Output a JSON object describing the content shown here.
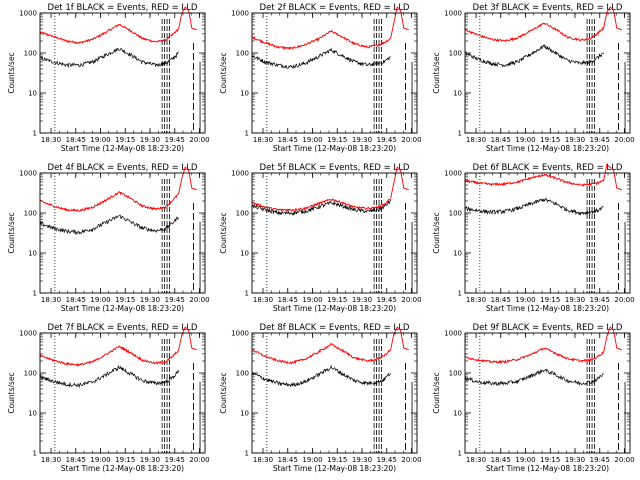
{
  "figure": {
    "panels": [
      {
        "title": "Det 1f BLACK = Events, RED = LLD"
      },
      {
        "title": "Det 2f BLACK = Events, RED = LLD"
      },
      {
        "title": "Det 3f BLACK = Events, RED = LLD"
      },
      {
        "title": "Det 4f BLACK = Events, RED = LLD"
      },
      {
        "title": "Det 5f BLACK = Events, RED = LLD"
      },
      {
        "title": "Det 6f BLACK = Events, RED = LLD"
      },
      {
        "title": "Det 7f BLACK = Events, RED = LLD"
      },
      {
        "title": "Det 8f BLACK = Events, RED = LLD"
      },
      {
        "title": "Det 9f BLACK = Events, RED = LLD"
      }
    ],
    "xlabel": "Start Time (12-May-08 18:23:20)",
    "ylabel": "Counts/sec",
    "xticks": [
      "18:30",
      "18:45",
      "19:00",
      "19:15",
      "19:30",
      "19:45",
      "20:00"
    ],
    "yticks": [
      "1",
      "10",
      "100",
      "1000"
    ],
    "colors": {
      "events": "#000000",
      "lld": "#ff0000",
      "axes": "#000000"
    }
  },
  "chart_data": {
    "type": "line",
    "layout": "3x3 grid",
    "x_units": "minutes after 18:23:20",
    "xlim": [
      0,
      100
    ],
    "yscale": "log",
    "ylim": [
      1,
      1000
    ],
    "series": [
      {
        "name": "Events",
        "color": "#000000"
      },
      {
        "name": "LLD",
        "color": "#ff0000"
      }
    ],
    "panels": [
      {
        "title": "Det 1f BLACK = Events, RED = LLD",
        "x": [
          0,
          8,
          16,
          24,
          32,
          40,
          48,
          55,
          62,
          70,
          76,
          80,
          84
        ],
        "events": [
          75,
          60,
          50,
          50,
          60,
          90,
          130,
          90,
          60,
          50,
          55,
          70,
          100
        ],
        "lld": [
          330,
          260,
          200,
          180,
          220,
          330,
          520,
          360,
          230,
          190,
          210,
          280,
          400
        ]
      },
      {
        "title": "Det 2f BLACK = Events, RED = LLD",
        "x": [
          0,
          8,
          16,
          24,
          32,
          40,
          48,
          55,
          62,
          70,
          76,
          80,
          84
        ],
        "events": [
          85,
          60,
          50,
          45,
          55,
          80,
          120,
          85,
          60,
          50,
          55,
          60,
          80
        ],
        "lld": [
          250,
          180,
          140,
          130,
          160,
          220,
          350,
          250,
          170,
          140,
          155,
          180,
          230
        ]
      },
      {
        "title": "Det 3f BLACK = Events, RED = LLD",
        "x": [
          0,
          8,
          16,
          24,
          32,
          40,
          48,
          55,
          62,
          70,
          76,
          80,
          84
        ],
        "events": [
          100,
          70,
          55,
          50,
          60,
          95,
          150,
          100,
          65,
          55,
          60,
          75,
          100
        ],
        "lld": [
          380,
          280,
          220,
          200,
          240,
          360,
          560,
          390,
          250,
          210,
          230,
          300,
          420
        ]
      },
      {
        "title": "Det 4f BLACK = Events, RED = LLD",
        "x": [
          0,
          8,
          16,
          24,
          32,
          40,
          48,
          55,
          62,
          70,
          76,
          80,
          84
        ],
        "events": [
          55,
          42,
          35,
          33,
          40,
          58,
          85,
          60,
          42,
          36,
          40,
          55,
          80
        ],
        "lld": [
          200,
          150,
          120,
          115,
          140,
          210,
          330,
          230,
          150,
          125,
          140,
          200,
          300
        ]
      },
      {
        "title": "Det 5f BLACK = Events, RED = LLD",
        "x": [
          0,
          8,
          16,
          24,
          32,
          40,
          48,
          55,
          62,
          70,
          76,
          80,
          84
        ],
        "events": [
          150,
          120,
          100,
          100,
          110,
          140,
          180,
          150,
          120,
          110,
          120,
          140,
          200
        ],
        "lld": [
          180,
          140,
          120,
          120,
          130,
          170,
          220,
          180,
          140,
          130,
          140,
          160,
          230
        ]
      },
      {
        "title": "Det 6f BLACK = Events, RED = LLD",
        "x": [
          0,
          8,
          16,
          24,
          32,
          40,
          48,
          55,
          62,
          70,
          76,
          80,
          84
        ],
        "events": [
          130,
          115,
          105,
          110,
          130,
          170,
          220,
          170,
          120,
          100,
          105,
          115,
          140
        ],
        "lld": [
          650,
          560,
          520,
          530,
          600,
          750,
          900,
          740,
          580,
          500,
          520,
          560,
          650
        ]
      },
      {
        "title": "Det 7f BLACK = Events, RED = LLD",
        "x": [
          0,
          8,
          16,
          24,
          32,
          40,
          48,
          55,
          62,
          70,
          76,
          80,
          84
        ],
        "events": [
          80,
          62,
          52,
          50,
          60,
          90,
          140,
          95,
          65,
          55,
          60,
          75,
          110
        ],
        "lld": [
          270,
          210,
          170,
          160,
          190,
          290,
          460,
          320,
          210,
          175,
          190,
          250,
          370
        ]
      },
      {
        "title": "Det 8f BLACK = Events, RED = LLD",
        "x": [
          0,
          8,
          16,
          24,
          32,
          40,
          48,
          55,
          62,
          70,
          76,
          80,
          84
        ],
        "events": [
          100,
          70,
          55,
          50,
          60,
          90,
          140,
          95,
          65,
          55,
          60,
          70,
          100
        ],
        "lld": [
          380,
          260,
          200,
          180,
          220,
          330,
          520,
          360,
          240,
          200,
          220,
          270,
          380
        ]
      },
      {
        "title": "Det 9f BLACK = Events, RED = LLD",
        "x": [
          0,
          8,
          16,
          24,
          32,
          40,
          48,
          55,
          62,
          70,
          76,
          80,
          84
        ],
        "events": [
          75,
          60,
          55,
          55,
          62,
          85,
          120,
          90,
          65,
          55,
          60,
          70,
          95
        ],
        "lld": [
          250,
          210,
          190,
          190,
          220,
          290,
          420,
          310,
          230,
          200,
          210,
          250,
          330
        ]
      }
    ]
  }
}
